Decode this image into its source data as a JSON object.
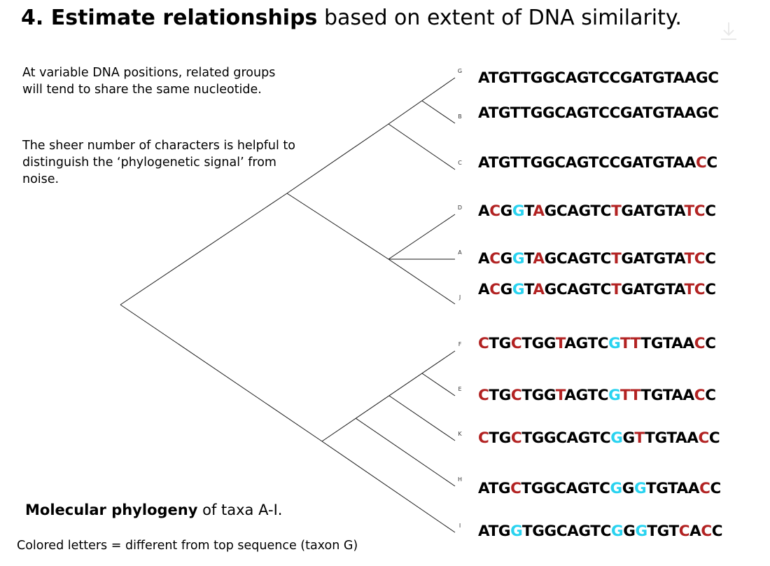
{
  "title": {
    "bold": "4. Estimate relationships",
    "rest": " based on extent of DNA similarity."
  },
  "paragraphs": {
    "p1": "At variable DNA positions, related groups will tend to share the same nucleotide.",
    "p2": "The sheer number of characters is helpful to distinguish the ‘phylogenetic signal’ from noise."
  },
  "caption": {
    "bold": "Molecular phylogeny",
    "rest": " of taxa A-I."
  },
  "footnote": "Colored letters = different from top sequence (taxon G)",
  "colors": {
    "differs_red": "#b22222",
    "differs_cyan": "#29d3f0",
    "same": "#000000"
  },
  "taxa": [
    {
      "label": "G",
      "sequence": "ATGTTGGCAGTCCGATGTAAGC",
      "marks": "0000000000000000000000"
    },
    {
      "label": "B",
      "sequence": "ATGTTGGCAGTCCGATGTAAGC",
      "marks": "0000000000000000000000"
    },
    {
      "label": "C",
      "sequence": "ATGTTGGCAGTCCGATGTAACC",
      "marks": "0000000000000000000010"
    },
    {
      "label": "D",
      "sequence": "ACGGTAGCAGTCTGATGTATCC",
      "marks": "0102010000001000000110"
    },
    {
      "label": "A",
      "sequence": "ACGGTAGCAGTCTGATGTATCC",
      "marks": "0102010000001000000110"
    },
    {
      "label": "J",
      "sequence": "ACGGTAGCAGTCTGATGTATCC",
      "marks": "0102010000001000000110"
    },
    {
      "label": "F",
      "sequence": "CTGCTGGTAGTCGTTTGTAACC",
      "marks": "1001000100002110000010"
    },
    {
      "label": "E",
      "sequence": "CTGCTGGTAGTCGTTTGTAACC",
      "marks": "1001000100002110000010"
    },
    {
      "label": "K",
      "sequence": "CTGCTGGCAGTCGGTTGTAACC",
      "marks": "1001000000002010000010"
    },
    {
      "label": "H",
      "sequence": "ATGCTGGCAGTCGGGTGTAACC",
      "marks": "0001000000002020000010"
    },
    {
      "label": "I",
      "sequence": "ATGGTGGCAGTCGGGTGTCACC",
      "marks": "0002000000002020001010"
    }
  ]
}
